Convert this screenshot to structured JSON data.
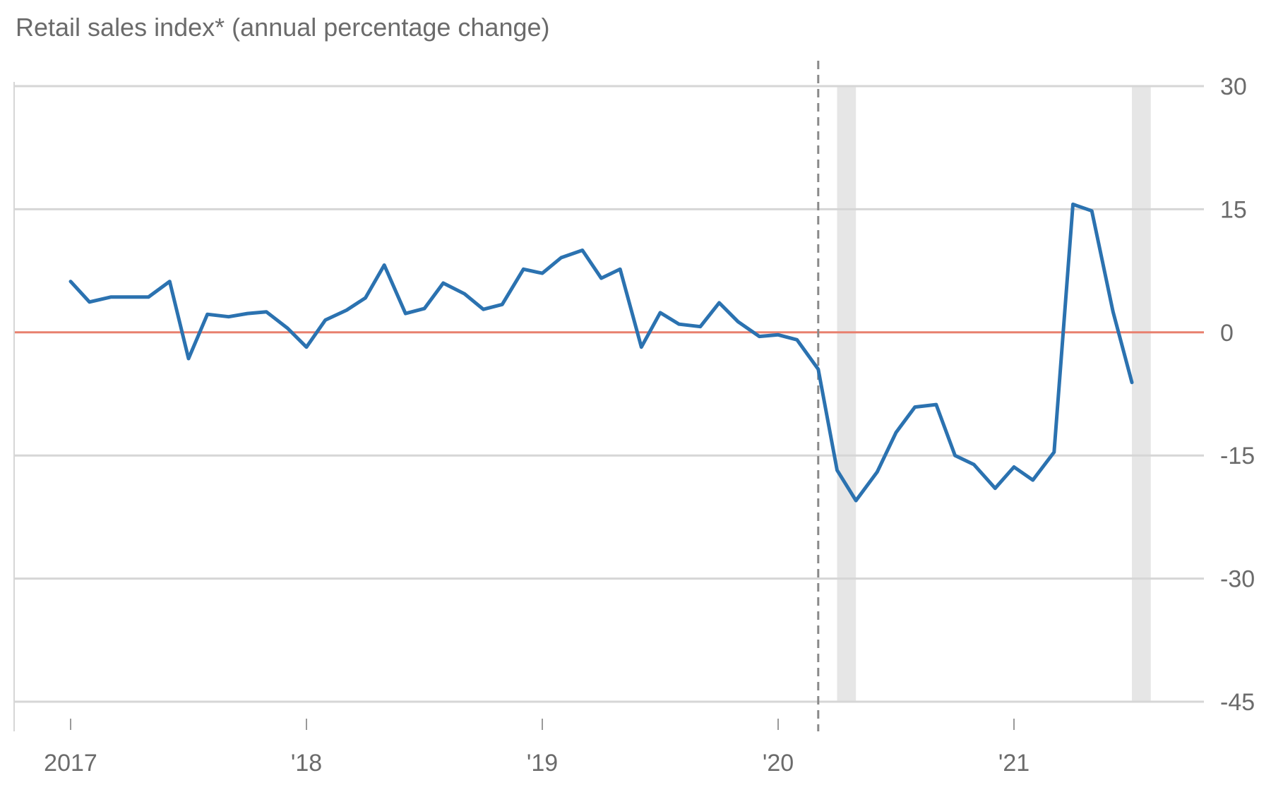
{
  "chart_data": {
    "type": "line",
    "title": "Retail sales index* (annual percentage change)",
    "xlabel": "",
    "ylabel": "",
    "x_tick_labels": [
      "2017",
      "'18",
      "'19",
      "'20",
      "'21"
    ],
    "x_ticks": [
      2017,
      2018,
      2019,
      2020,
      2021
    ],
    "y_ticks": [
      30,
      15,
      0,
      -15,
      -30,
      -45
    ],
    "y_tick_labels": [
      "30",
      "15",
      "0",
      "-15",
      "-30",
      "-45"
    ],
    "ylim": [
      -45,
      30
    ],
    "xlim": [
      2016.77,
      2021.87
    ],
    "grid": "horizontal",
    "y_axis_side": "right",
    "reference_line": {
      "y": 0,
      "color": "#e8806f"
    },
    "event_line": {
      "x": 2020.17,
      "style": "dashed"
    },
    "shaded_periods": [
      [
        2020.25,
        2020.33
      ],
      [
        2021.5,
        2021.58
      ]
    ],
    "series": [
      {
        "color": "#2b72b0",
        "x": [
          2017.0,
          2017.08,
          2017.17,
          2017.25,
          2017.33,
          2017.42,
          2017.5,
          2017.58,
          2017.67,
          2017.75,
          2017.83,
          2017.92,
          2018.0,
          2018.08,
          2018.17,
          2018.25,
          2018.33,
          2018.42,
          2018.5,
          2018.58,
          2018.67,
          2018.75,
          2018.83,
          2018.92,
          2019.0,
          2019.08,
          2019.17,
          2019.25,
          2019.33,
          2019.42,
          2019.5,
          2019.58,
          2019.67,
          2019.75,
          2019.83,
          2019.92,
          2020.0,
          2020.08,
          2020.17,
          2020.25,
          2020.33,
          2020.42,
          2020.5,
          2020.58,
          2020.67,
          2020.75,
          2020.83,
          2020.92,
          2021.0,
          2021.08,
          2021.17,
          2021.25,
          2021.33,
          2021.42,
          2021.5
        ],
        "values": [
          6.2,
          3.7,
          4.3,
          4.3,
          4.3,
          6.2,
          -3.2,
          2.2,
          1.9,
          2.3,
          2.5,
          0.5,
          -1.8,
          1.5,
          2.7,
          4.2,
          8.2,
          2.3,
          2.9,
          6.0,
          4.7,
          2.8,
          3.4,
          7.7,
          7.2,
          9.1,
          10.0,
          6.6,
          7.7,
          -1.8,
          2.4,
          1.0,
          0.7,
          3.6,
          1.3,
          -0.5,
          -0.3,
          -0.9,
          -4.5,
          -16.8,
          -20.5,
          -17.0,
          -12.2,
          -9.1,
          -8.8,
          -15.0,
          -16.1,
          -19.0,
          -16.4,
          -18.0,
          -14.6,
          15.6,
          14.8,
          2.5,
          -6.1
        ]
      }
    ]
  }
}
